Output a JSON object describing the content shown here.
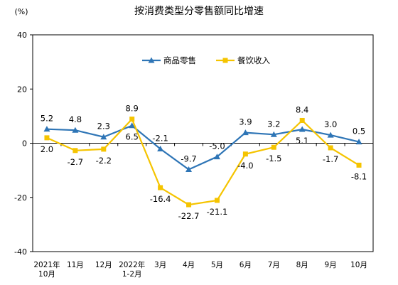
{
  "chart_data": {
    "type": "line",
    "title": "按消费类型分零售额同比增速",
    "unit_label": "(%)",
    "ylim": [
      -40,
      40
    ],
    "yticks": [
      40,
      20,
      0,
      -20,
      -40
    ],
    "categories": [
      [
        "2021年",
        "10月"
      ],
      [
        "11月"
      ],
      [
        "12月"
      ],
      [
        "2022年",
        "1-2月"
      ],
      [
        "3月"
      ],
      [
        "4月"
      ],
      [
        "5月"
      ],
      [
        "6月"
      ],
      [
        "7月"
      ],
      [
        "8月"
      ],
      [
        "9月"
      ],
      [
        "10月"
      ]
    ],
    "series": [
      {
        "name": "商品零售",
        "color": "#2E75B6",
        "marker": "triangle",
        "values": [
          5.2,
          4.8,
          2.3,
          6.5,
          -2.1,
          -9.7,
          -5.0,
          3.9,
          3.2,
          5.1,
          3.0,
          0.5
        ],
        "labels": [
          "5.2",
          "4.8",
          "2.3",
          "6.5",
          "-2.1",
          "-9.7",
          "-5.0",
          "3.9",
          "3.2",
          "5.1",
          "3.0",
          "0.5"
        ]
      },
      {
        "name": "餐饮收入",
        "color": "#F5C400",
        "marker": "square",
        "values": [
          2.0,
          -2.7,
          -2.2,
          8.9,
          -16.4,
          -22.7,
          -21.1,
          -4.0,
          -1.5,
          8.4,
          -1.7,
          -8.1
        ],
        "labels": [
          "2.0",
          "-2.7",
          "-2.2",
          "8.9",
          "-16.4",
          "-22.7",
          "-21.1",
          "-4.0",
          "-1.5",
          "8.4",
          "-1.7",
          "-8.1"
        ]
      }
    ],
    "legend_position": "top-center",
    "grid": false
  }
}
